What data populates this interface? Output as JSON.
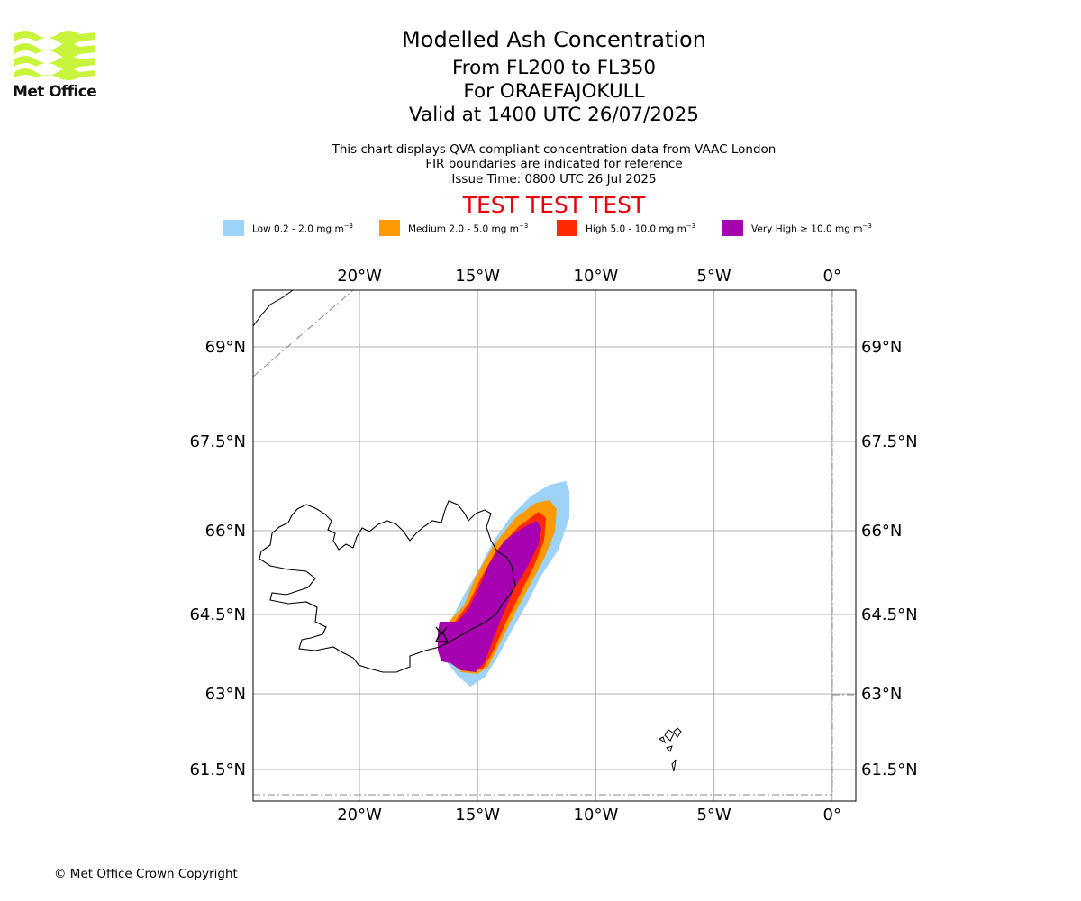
{
  "header": {
    "logo_name": "Met Office",
    "title": "Modelled Ash Concentration",
    "levels": "From FL200 to FL350",
    "volcano": "For ORAEFAJOKULL",
    "valid": "Valid at 1400 UTC 26/07/2025"
  },
  "notes": {
    "line1": "This chart displays QVA compliant concentration data from VAAC London",
    "line2": "FIR boundaries are indicated for reference",
    "issue": "Issue Time: 0800 UTC 26 Jul 2025"
  },
  "banner": "TEST TEST TEST",
  "legend": [
    {
      "name": "Low",
      "range": "Low 0.2 - 2.0 mg m",
      "exp": "−3",
      "color": "#9dd3f9"
    },
    {
      "name": "Medium",
      "range": "Medium 2.0 - 5.0 mg m",
      "exp": "−3",
      "color": "#ff9a00"
    },
    {
      "name": "High",
      "range": "High 5.0 - 10.0 mg m",
      "exp": "−3",
      "color": "#ff2a00"
    },
    {
      "name": "Very High",
      "range": "Very High  ≥  10.0 mg m",
      "exp": "−3",
      "color": "#a600b0"
    }
  ],
  "map": {
    "lon_range": [
      -24.5,
      1.0
    ],
    "lon_ticks": [
      -20,
      -15,
      -10,
      -5,
      0
    ],
    "lon_labels": [
      "20°W",
      "15°W",
      "10°W",
      "5°W",
      "0°"
    ],
    "lat_ticks": [
      69,
      67.5,
      66,
      64.5,
      63,
      61.5
    ],
    "lat_labels": [
      "69°N",
      "67.5°N",
      "66°N",
      "64.5°N",
      "63°N",
      "61.5°N"
    ],
    "colors": {
      "low": "#9dd3f9",
      "medium": "#ff9a00",
      "high": "#ff2a00",
      "very_high": "#a600b0",
      "grid": "#b0b0b0"
    }
  },
  "footer": {
    "copyright": "© Met Office Crown Copyright"
  }
}
